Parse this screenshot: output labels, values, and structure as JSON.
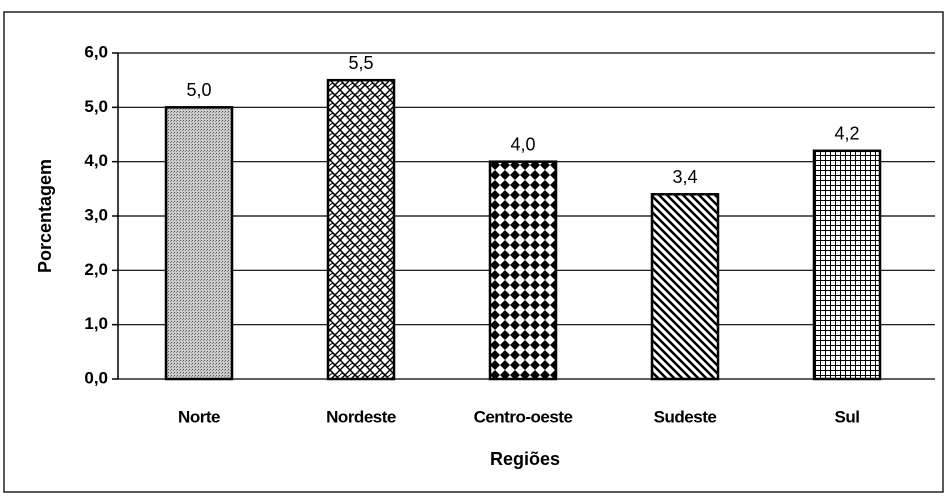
{
  "chart_data": {
    "type": "bar",
    "x_label": "Regiões",
    "y_label": "Porcentagem",
    "categories": [
      "Norte",
      "Nordeste",
      "Centro-oeste",
      "Sudeste",
      "Sul"
    ],
    "values": [
      5.0,
      5.5,
      4.0,
      3.4,
      4.2
    ],
    "value_labels": [
      "5,0",
      "5,5",
      "4,0",
      "3,4",
      "4,2"
    ],
    "color": "#000000",
    "ylim": [
      0,
      6
    ],
    "yticks": [
      {
        "value": 0,
        "label": "0,0"
      },
      {
        "value": 1,
        "label": "1,0"
      },
      {
        "value": 2,
        "label": "2,0"
      },
      {
        "value": 3,
        "label": "3,0"
      },
      {
        "value": 4,
        "label": "4,0"
      },
      {
        "value": 5,
        "label": "5,0"
      },
      {
        "value": 6,
        "label": "6,0"
      }
    ],
    "grid": true
  }
}
